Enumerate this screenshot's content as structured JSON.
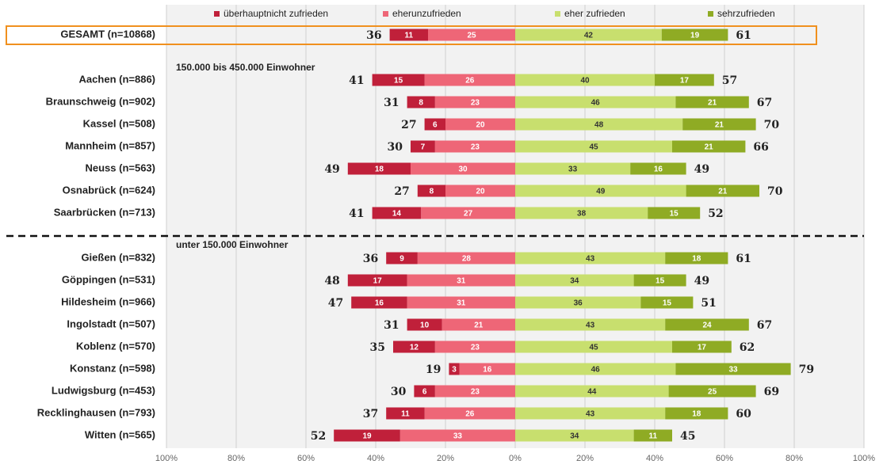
{
  "chart_data": {
    "type": "diverging_bar",
    "categories": [
      "GESAMT (n=10868)",
      "Aachen (n=886)",
      "Braunschweig (n=902)",
      "Kassel (n=508)",
      "Mannheim (n=857)",
      "Neuss (n=563)",
      "Osnabrück (n=624)",
      "Saarbrücken (n=713)",
      "Gießen (n=832)",
      "Göppingen (n=531)",
      "Hildesheim (n=966)",
      "Ingolstadt (n=507)",
      "Koblenz (n=570)",
      "Konstanz (n=598)",
      "Ludwigsburg (n=453)",
      "Recklinghausen (n=793)",
      "Witten (n=565)"
    ],
    "group_labels": [
      "150.000 bis 450.000 Einwohner",
      "unter 150.000 Einwohner"
    ],
    "series": [
      {
        "name": "überhauptnicht zufrieden",
        "color": "#c0203a",
        "values": [
          -11,
          -15,
          -8,
          -6,
          -7,
          -18,
          -8,
          -14,
          -9,
          -17,
          -16,
          -10,
          -12,
          -3,
          -6,
          -11,
          -19
        ],
        "value_labels": [
          "11",
          "15",
          "8",
          "6",
          "7",
          "18",
          "8",
          "14",
          "9",
          "17",
          "16",
          "10",
          "12",
          "3",
          "6",
          "11",
          "19"
        ]
      },
      {
        "name": "eherunzufrieden",
        "color": "#ee6677",
        "values": [
          -25,
          -26,
          -23,
          -20,
          -23,
          -30,
          -20,
          -27,
          -28,
          -31,
          -31,
          -21,
          -23,
          -16,
          -23,
          -26,
          -33
        ],
        "value_labels": [
          "25",
          "26",
          "23",
          "20",
          "23",
          "30",
          "20",
          "27",
          "28",
          "31",
          "31",
          "21",
          "23",
          "16",
          "23",
          "26",
          "33"
        ]
      },
      {
        "name": "eher zufrieden",
        "color": "#c8df6e",
        "values": [
          42,
          40,
          46,
          48,
          45,
          33,
          49,
          38,
          43,
          34,
          36,
          43,
          45,
          46,
          44,
          43,
          34
        ]
      },
      {
        "name": "sehrzufrieden",
        "color": "#8fab24",
        "values": [
          19,
          17,
          21,
          21,
          21,
          16,
          21,
          15,
          18,
          15,
          15,
          24,
          17,
          33,
          25,
          18,
          11
        ]
      }
    ],
    "left_totals": [
      36,
      41,
      31,
      27,
      30,
      49,
      27,
      41,
      36,
      48,
      47,
      31,
      35,
      19,
      30,
      37,
      52
    ],
    "right_totals": [
      61,
      57,
      67,
      70,
      66,
      49,
      70,
      52,
      61,
      49,
      51,
      67,
      62,
      79,
      69,
      60,
      45
    ],
    "xlim": [
      -100,
      100
    ],
    "xticks": [
      {
        "value": -100,
        "label": "100%"
      },
      {
        "value": -80,
        "label": "80%"
      },
      {
        "value": -60,
        "label": "60%"
      },
      {
        "value": -40,
        "label": "40%"
      },
      {
        "value": -20,
        "label": "20%"
      },
      {
        "value": 0,
        "label": "0%"
      },
      {
        "value": 20,
        "label": "20%"
      },
      {
        "value": 40,
        "label": "40%"
      },
      {
        "value": 60,
        "label": "60%"
      },
      {
        "value": 80,
        "label": "80%"
      },
      {
        "value": 100,
        "label": "100%"
      }
    ],
    "grid": true
  }
}
